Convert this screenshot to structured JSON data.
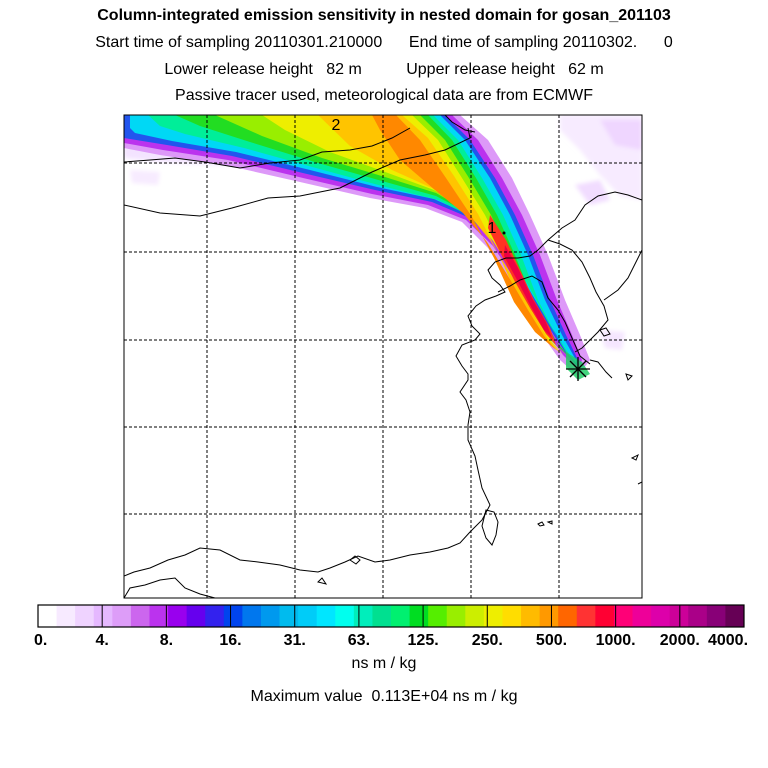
{
  "titles": {
    "line1": "Column-integrated emission sensitivity in nested domain for gosan_201103",
    "line2": "Start time of sampling 20110301.210000      End time of sampling 20110302.      0",
    "line3": "Lower release height   82 m          Upper release height   62 m",
    "line4": "Passive tracer used, meteorological data are from ECMWF"
  },
  "map": {
    "markers": [
      {
        "label": "2"
      },
      {
        "label": "1"
      }
    ]
  },
  "colorbar": {
    "colors": [
      "#ffffff",
      "#f7eaff",
      "#efd3ff",
      "#e5b8ff",
      "#dd9df8",
      "#cc66ee",
      "#bb33ee",
      "#9900ee",
      "#6600ee",
      "#3322ee",
      "#0044ee",
      "#0077ee",
      "#0099ee",
      "#00bbee",
      "#00ccf8",
      "#00e6ff",
      "#00ffee",
      "#00eebb",
      "#00e090",
      "#00f070",
      "#00dd22",
      "#55ee00",
      "#99ee00",
      "#ccee00",
      "#eeee00",
      "#ffdd00",
      "#ffbb00",
      "#ff9900",
      "#ff6600",
      "#ff3333",
      "#ff0033",
      "#ff0077",
      "#ee0099",
      "#dd00aa",
      "#cc0099",
      "#aa0088",
      "#880077",
      "#660055"
    ],
    "tick_labels": [
      "0.",
      "4.",
      "8.",
      "16.",
      "31.",
      "63.",
      "125.",
      "250.",
      "500.",
      "1000.",
      "2000.",
      "4000."
    ],
    "units": "ns m / kg"
  },
  "max_value": "Maximum value  0.113E+04 ns m / kg"
}
